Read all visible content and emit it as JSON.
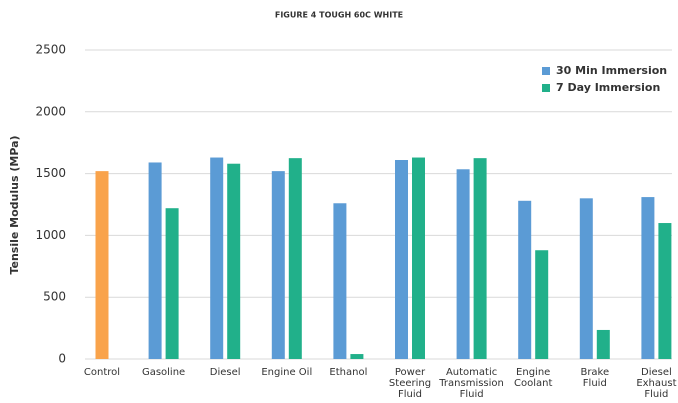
{
  "chart_data": {
    "type": "bar",
    "title": "FIGURE 4 TOUGH 60C WHITE",
    "y_label": "Tensile Modulus (MPa)",
    "categories": [
      "Control",
      "Gasoline",
      "Diesel",
      "Engine Oil",
      "Ethanol",
      "Power Steering Fluid",
      "Automatic Transmission Fluid",
      "Engine Coolant",
      "Brake Fluid",
      "Diesel Exhaust Fluid"
    ],
    "control": {
      "value": 1520,
      "color": "#f9a34b"
    },
    "series": [
      {
        "name": "30 Min Immersion",
        "color": "#5b9bd5",
        "values": [
          null,
          1590,
          1630,
          1520,
          1260,
          1610,
          1535,
          1280,
          1300,
          1310
        ]
      },
      {
        "name": "7 Day Immersion",
        "color": "#21b08a",
        "values": [
          null,
          1220,
          1580,
          1625,
          40,
          1630,
          1625,
          880,
          235,
          1100
        ]
      }
    ],
    "ylim": [
      0,
      2500
    ],
    "yticks": [
      0,
      500,
      1000,
      1500,
      2000,
      2500
    ],
    "grid": true,
    "legend": "top-right"
  }
}
